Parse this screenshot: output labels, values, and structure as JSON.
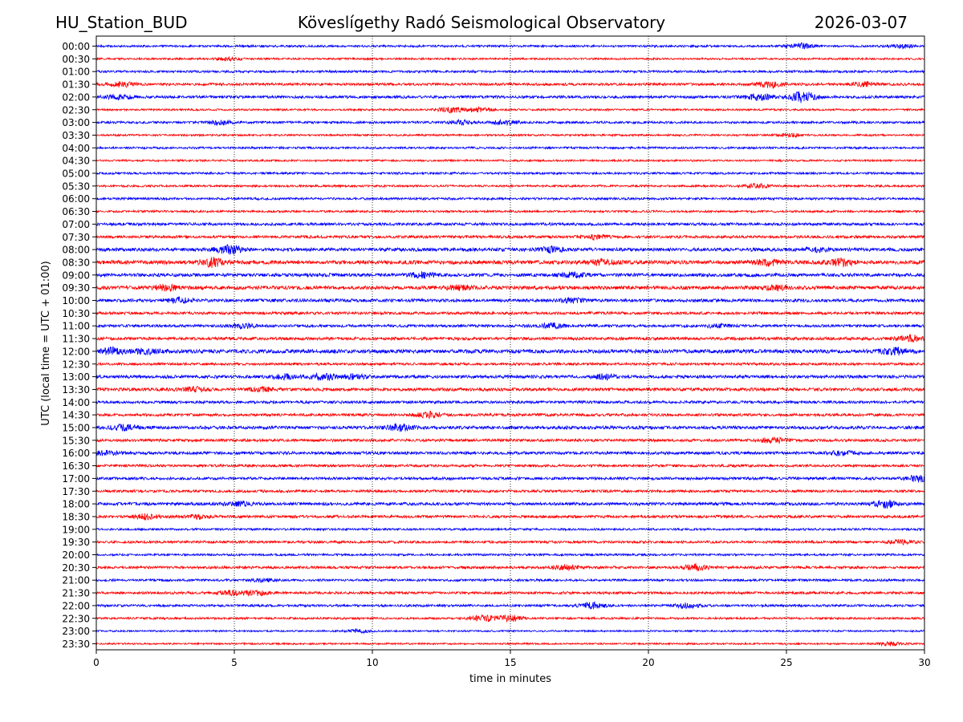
{
  "header": {
    "station": "HU_Station_BUD",
    "observatory": "Köveslígethy Radó Seismological Observatory",
    "date": "2026-03-07"
  },
  "chart_data": {
    "type": "line",
    "title": "Köveslígethy Radó Seismological Observatory",
    "xlabel": "time in minutes",
    "ylabel": "UTC (local time = UTC + 01:00)",
    "xlim": [
      0,
      30
    ],
    "x_ticks": [
      0,
      5,
      10,
      15,
      20,
      25,
      30
    ],
    "grid": {
      "x": "dotted",
      "y": "off"
    },
    "legend": "none",
    "row_labels": [
      "00:00",
      "00:30",
      "01:00",
      "01:30",
      "02:00",
      "02:30",
      "03:00",
      "03:30",
      "04:00",
      "04:30",
      "05:00",
      "05:30",
      "06:00",
      "06:30",
      "07:00",
      "07:30",
      "08:00",
      "08:30",
      "09:00",
      "09:30",
      "10:00",
      "10:30",
      "11:00",
      "11:30",
      "12:00",
      "12:30",
      "13:00",
      "13:30",
      "14:00",
      "14:30",
      "15:00",
      "15:30",
      "16:00",
      "16:30",
      "17:00",
      "17:30",
      "18:00",
      "18:30",
      "19:00",
      "19:30",
      "20:00",
      "20:30",
      "21:00",
      "21:30",
      "22:00",
      "22:30",
      "23:00",
      "23:30"
    ],
    "trace_colors": [
      "#0000ff",
      "#ff0000"
    ],
    "noise_level": [
      1.0,
      0.9,
      1.1,
      1.2,
      1.3,
      0.9,
      1.1,
      0.9,
      1.0,
      0.9,
      1.0,
      1.0,
      1.1,
      1.0,
      1.3,
      1.3,
      1.6,
      1.8,
      1.6,
      1.7,
      1.5,
      1.3,
      1.3,
      1.4,
      1.8,
      1.2,
      1.5,
      1.5,
      1.3,
      1.3,
      1.5,
      1.3,
      1.4,
      1.2,
      1.3,
      1.2,
      1.4,
      1.3,
      1.0,
      1.2,
      1.0,
      1.2,
      1.1,
      1.2,
      1.1,
      1.0,
      0.8,
      0.8
    ],
    "events": [
      {
        "row": 0,
        "t": 25.5,
        "amp": 2.0
      },
      {
        "row": 0,
        "t": 29.1,
        "amp": 1.5
      },
      {
        "row": 1,
        "t": 4.8,
        "amp": 1.3
      },
      {
        "row": 3,
        "t": 0.9,
        "amp": 2.0
      },
      {
        "row": 3,
        "t": 24.4,
        "amp": 2.6
      },
      {
        "row": 3,
        "t": 27.8,
        "amp": 1.8
      },
      {
        "row": 4,
        "t": 0.8,
        "amp": 1.8
      },
      {
        "row": 4,
        "t": 24.0,
        "amp": 2.5
      },
      {
        "row": 4,
        "t": 25.6,
        "amp": 4.6
      },
      {
        "row": 5,
        "t": 12.8,
        "amp": 2.2
      },
      {
        "row": 5,
        "t": 13.8,
        "amp": 1.6
      },
      {
        "row": 6,
        "t": 4.5,
        "amp": 1.8
      },
      {
        "row": 6,
        "t": 13.2,
        "amp": 1.6
      },
      {
        "row": 6,
        "t": 14.8,
        "amp": 1.8
      },
      {
        "row": 7,
        "t": 25.1,
        "amp": 1.3
      },
      {
        "row": 11,
        "t": 23.9,
        "amp": 1.8
      },
      {
        "row": 15,
        "t": 18.1,
        "amp": 1.6
      },
      {
        "row": 16,
        "t": 4.8,
        "amp": 3.8
      },
      {
        "row": 16,
        "t": 16.5,
        "amp": 2.0
      },
      {
        "row": 16,
        "t": 26.0,
        "amp": 1.6
      },
      {
        "row": 17,
        "t": 4.2,
        "amp": 3.5
      },
      {
        "row": 17,
        "t": 18.3,
        "amp": 2.0
      },
      {
        "row": 17,
        "t": 24.3,
        "amp": 2.3
      },
      {
        "row": 17,
        "t": 27.0,
        "amp": 2.8
      },
      {
        "row": 18,
        "t": 11.8,
        "amp": 1.8
      },
      {
        "row": 18,
        "t": 17.3,
        "amp": 1.8
      },
      {
        "row": 19,
        "t": 2.5,
        "amp": 2.0
      },
      {
        "row": 19,
        "t": 13.2,
        "amp": 1.8
      },
      {
        "row": 19,
        "t": 24.6,
        "amp": 1.8
      },
      {
        "row": 20,
        "t": 3.0,
        "amp": 2.0
      },
      {
        "row": 20,
        "t": 17.3,
        "amp": 1.6
      },
      {
        "row": 22,
        "t": 5.3,
        "amp": 1.6
      },
      {
        "row": 22,
        "t": 16.5,
        "amp": 2.0
      },
      {
        "row": 22,
        "t": 22.5,
        "amp": 1.5
      },
      {
        "row": 23,
        "t": 29.5,
        "amp": 2.5
      },
      {
        "row": 24,
        "t": 0.6,
        "amp": 2.6
      },
      {
        "row": 24,
        "t": 1.8,
        "amp": 1.8
      },
      {
        "row": 24,
        "t": 28.9,
        "amp": 2.8
      },
      {
        "row": 26,
        "t": 6.8,
        "amp": 1.8
      },
      {
        "row": 26,
        "t": 8.2,
        "amp": 2.8
      },
      {
        "row": 26,
        "t": 9.3,
        "amp": 1.8
      },
      {
        "row": 26,
        "t": 18.4,
        "amp": 1.8
      },
      {
        "row": 27,
        "t": 3.6,
        "amp": 1.6
      },
      {
        "row": 27,
        "t": 6.0,
        "amp": 1.4
      },
      {
        "row": 29,
        "t": 12.1,
        "amp": 2.3
      },
      {
        "row": 30,
        "t": 1.0,
        "amp": 2.3
      },
      {
        "row": 30,
        "t": 11.0,
        "amp": 2.6
      },
      {
        "row": 31,
        "t": 24.5,
        "amp": 2.0
      },
      {
        "row": 32,
        "t": 0.4,
        "amp": 1.8
      },
      {
        "row": 32,
        "t": 27.0,
        "amp": 1.8
      },
      {
        "row": 34,
        "t": 29.8,
        "amp": 3.0
      },
      {
        "row": 36,
        "t": 5.2,
        "amp": 1.8
      },
      {
        "row": 36,
        "t": 28.6,
        "amp": 3.0
      },
      {
        "row": 37,
        "t": 1.8,
        "amp": 1.8
      },
      {
        "row": 37,
        "t": 3.7,
        "amp": 1.5
      },
      {
        "row": 39,
        "t": 29.1,
        "amp": 1.6
      },
      {
        "row": 41,
        "t": 17.0,
        "amp": 1.8
      },
      {
        "row": 41,
        "t": 21.7,
        "amp": 2.3
      },
      {
        "row": 42,
        "t": 6.0,
        "amp": 1.3
      },
      {
        "row": 43,
        "t": 4.8,
        "amp": 2.0
      },
      {
        "row": 43,
        "t": 5.8,
        "amp": 1.8
      },
      {
        "row": 44,
        "t": 18.0,
        "amp": 2.3
      },
      {
        "row": 44,
        "t": 21.4,
        "amp": 1.8
      },
      {
        "row": 45,
        "t": 14.0,
        "amp": 2.6
      },
      {
        "row": 45,
        "t": 15.0,
        "amp": 2.3
      },
      {
        "row": 46,
        "t": 9.5,
        "amp": 1.3
      },
      {
        "row": 47,
        "t": 28.8,
        "amp": 1.6
      }
    ]
  }
}
